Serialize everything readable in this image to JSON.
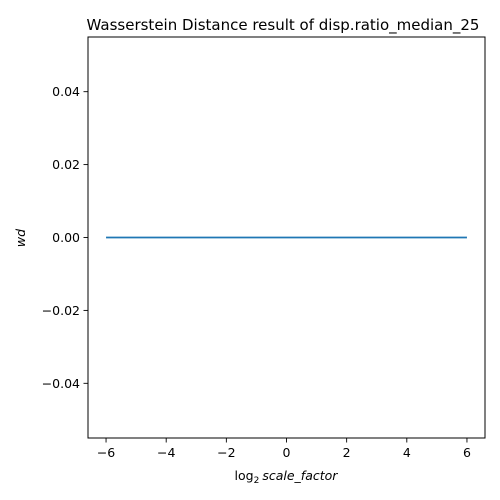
{
  "chart_data": {
    "type": "line",
    "title": "Wasserstein Distance result of disp.ratio_median_25",
    "xlabel": {
      "prefix": "log",
      "subscript": "2",
      "variable": "scale_factor"
    },
    "ylabel": "wd",
    "xlim": [
      -6.6,
      6.6
    ],
    "ylim": [
      -0.055,
      0.055
    ],
    "xticks": [
      -6,
      -4,
      -2,
      0,
      2,
      4,
      6
    ],
    "xtick_labels": [
      "−6",
      "−4",
      "−2",
      "0",
      "2",
      "4",
      "6"
    ],
    "yticks": [
      -0.04,
      -0.02,
      0.0,
      0.02,
      0.04
    ],
    "ytick_labels": [
      "−0.04",
      "−0.02",
      "0.00",
      "0.02",
      "0.04"
    ],
    "grid": false,
    "series": [
      {
        "x": [
          -6,
          -5,
          -4,
          -3,
          -2,
          -1,
          0,
          1,
          2,
          3,
          4,
          5,
          6
        ],
        "y": [
          0,
          0,
          0,
          0,
          0,
          0,
          0,
          0,
          0,
          0,
          0,
          0,
          0
        ],
        "color": "#1f77b4"
      }
    ]
  }
}
